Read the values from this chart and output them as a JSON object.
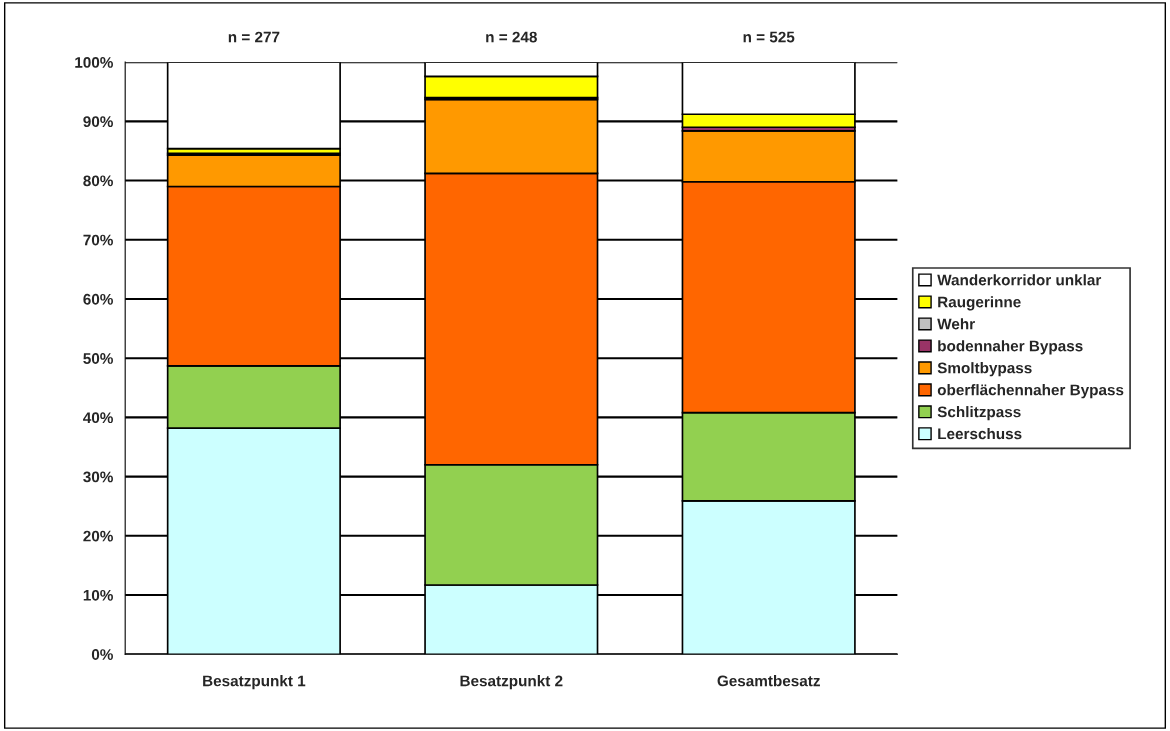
{
  "chart_data": {
    "type": "bar",
    "stacked": true,
    "categories": [
      "Besatzpunkt 1",
      "Besatzpunkt 2",
      "Gesamtbesatz"
    ],
    "series": [
      {
        "name": "Leerschuss",
        "color": "#ccffff",
        "values": [
          38.2,
          11.7,
          25.9
        ]
      },
      {
        "name": "Schlitzpass",
        "color": "#92d050",
        "values": [
          10.5,
          20.3,
          14.9
        ]
      },
      {
        "name": "oberflächennaher Bypass",
        "color": "#ff6600",
        "values": [
          30.3,
          49.2,
          39.0
        ]
      },
      {
        "name": "Smoltbypass",
        "color": "#ff9900",
        "values": [
          5.3,
          12.5,
          8.6
        ]
      },
      {
        "name": "bodennaher Bypass",
        "color": "#993366",
        "values": [
          0.3,
          0,
          0.6
        ]
      },
      {
        "name": "Wehr",
        "color": "#c0c0c0",
        "values": [
          0,
          0.3,
          0
        ]
      },
      {
        "name": "Raugerinne",
        "color": "#ffff00",
        "values": [
          0.8,
          3.6,
          2.2
        ]
      },
      {
        "name": "Wanderkorridor unklar",
        "color": "#ffffff",
        "values": [
          14.6,
          2.4,
          8.8
        ]
      }
    ],
    "ylim": [
      0,
      100
    ],
    "yticks": [
      {
        "value": 0,
        "label": "0%"
      },
      {
        "value": 10,
        "label": "10%"
      },
      {
        "value": 20,
        "label": "20%"
      },
      {
        "value": 30,
        "label": "30%"
      },
      {
        "value": 40,
        "label": "40%"
      },
      {
        "value": 50,
        "label": "50%"
      },
      {
        "value": 60,
        "label": "60%"
      },
      {
        "value": 70,
        "label": "70%"
      },
      {
        "value": 80,
        "label": "80%"
      },
      {
        "value": 90,
        "label": "90%"
      },
      {
        "value": 100,
        "label": "100%"
      }
    ],
    "grid": "y",
    "legend": "right",
    "annotations": [
      {
        "text": "n = 277",
        "x": "Besatzpunkt 1",
        "y": 100
      },
      {
        "text": "n = 248",
        "x": "Besatzpunkt 2",
        "y": 100
      },
      {
        "text": "n = 525",
        "x": "Gesamtbesatz",
        "y": 100
      }
    ]
  }
}
